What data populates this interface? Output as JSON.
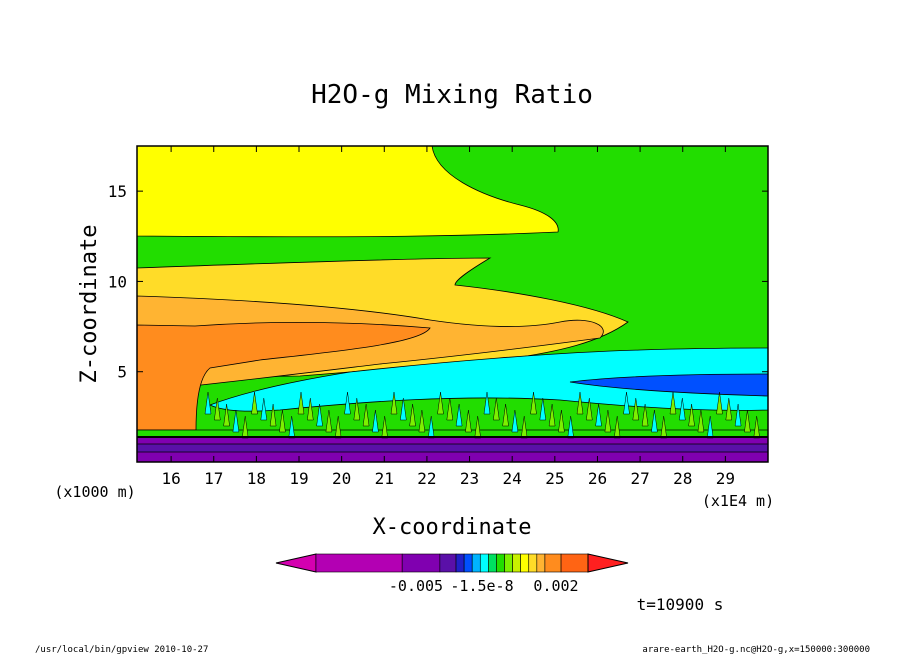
{
  "chart_data": {
    "type": "heatmap",
    "title": "H2O-g Mixing Ratio",
    "xlabel": "X-coordinate",
    "ylabel": "Z-coordinate",
    "x_unit_label": "(x1E4 m)",
    "y_unit_label": "(x1000 m)",
    "xlim": [
      15.2,
      30.0
    ],
    "ylim": [
      0.0,
      17.5
    ],
    "x_ticks": [
      16,
      17,
      18,
      19,
      20,
      21,
      22,
      23,
      24,
      25,
      26,
      27,
      28,
      29
    ],
    "x_tick_labels": [
      "16",
      "17",
      "18",
      "19",
      "20",
      "21",
      "22",
      "23",
      "24",
      "25",
      "26",
      "27",
      "28",
      "29"
    ],
    "y_ticks": [
      5,
      10,
      15
    ],
    "y_tick_labels": [
      "5",
      "10",
      "15"
    ],
    "colorbar": {
      "colors": [
        "#d400b0",
        "#b300b3",
        "#8000b0",
        "#5a10a8",
        "#2020c8",
        "#0050ff",
        "#00b4ff",
        "#00ffff",
        "#00e060",
        "#22dd00",
        "#7cf000",
        "#c8f000",
        "#ffff00",
        "#ffdc28",
        "#ffb432",
        "#ff8c1e",
        "#ff6414",
        "#ff2020"
      ],
      "tick_labels": [
        "-0.005",
        "-1.5e-8",
        "0.002"
      ]
    },
    "time_label": "t=10900 s",
    "footer_left": "/usr/local/bin/gpview  2010-10-27",
    "footer_right": "arare-earth_H2O-g.nc@H2O-g,x=150000:300000",
    "regions": [
      {
        "name": "upper-green",
        "color": "#22dd00"
      },
      {
        "name": "upper-yellow",
        "color": "#ffff00"
      },
      {
        "name": "yellow-orange",
        "color": "#ffdc28"
      },
      {
        "name": "orange",
        "color": "#ffb432"
      },
      {
        "name": "dark-orange",
        "color": "#ff8c1e"
      },
      {
        "name": "cyan-tongue",
        "color": "#00ffff"
      },
      {
        "name": "blue-tongue",
        "color": "#0050ff"
      },
      {
        "name": "lower-green",
        "color": "#22dd00"
      },
      {
        "name": "surface-purple",
        "color": "#8000b0"
      },
      {
        "name": "surface-violet",
        "color": "#5a10a8"
      }
    ]
  }
}
